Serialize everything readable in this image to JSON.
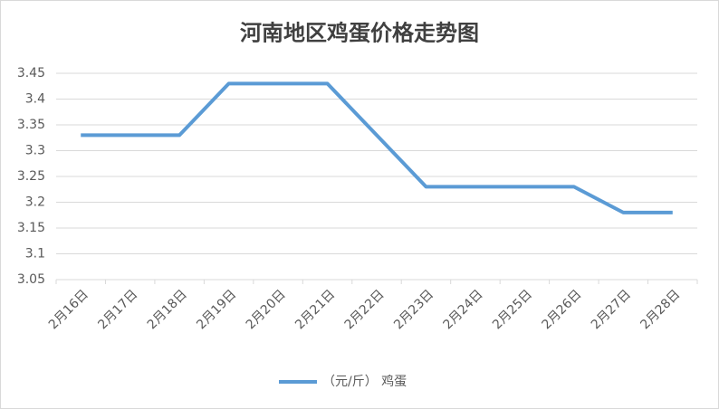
{
  "chart_data": {
    "type": "line",
    "title": "河南地区鸡蛋价格走势图",
    "categories": [
      "2月16日",
      "2月17日",
      "2月18日",
      "2月19日",
      "2月20日",
      "2月21日",
      "2月22日",
      "2月23日",
      "2月24日",
      "2月25日",
      "2月26日",
      "2月27日",
      "2月28日"
    ],
    "series": [
      {
        "name": "（元/斤） 鸡蛋",
        "color": "#5b9bd5",
        "values": [
          3.33,
          3.33,
          3.33,
          3.43,
          3.43,
          3.43,
          3.33,
          3.23,
          3.23,
          3.23,
          3.23,
          3.18,
          3.18
        ]
      }
    ],
    "ylim": [
      3.05,
      3.45
    ],
    "yticks": [
      3.05,
      3.1,
      3.15,
      3.2,
      3.25,
      3.3,
      3.35,
      3.4,
      3.45
    ],
    "grid": true,
    "legend": "bottom"
  }
}
